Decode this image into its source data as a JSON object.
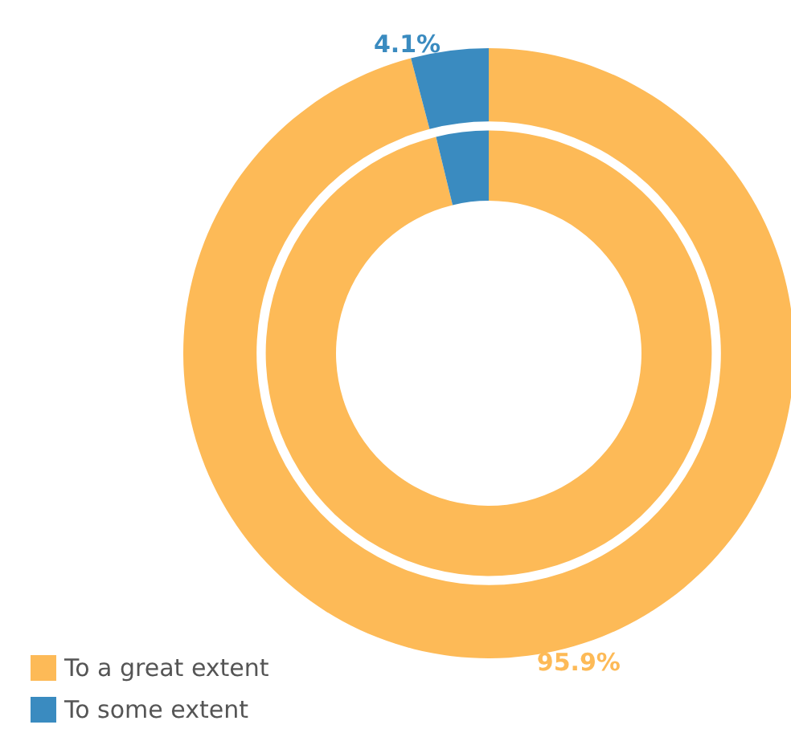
{
  "chart_data": {
    "type": "donut",
    "categories": [
      "To a great extent",
      "To some extent"
    ],
    "colors": [
      "#fdba57",
      "#3a8bc0"
    ],
    "series": [
      {
        "values": [
          95.9,
          4.1
        ],
        "value_labels": [
          "95.9%",
          "4.1%"
        ]
      },
      {
        "values": [
          96.2,
          3.8
        ]
      }
    ],
    "legend": "bottom left"
  }
}
